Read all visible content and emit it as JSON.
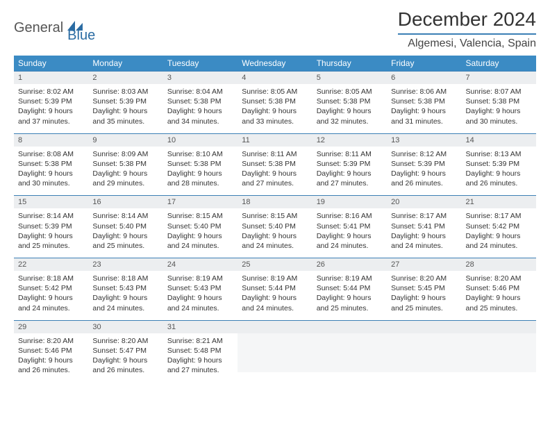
{
  "brand": {
    "text1": "General",
    "text2": "Blue"
  },
  "title": "December 2024",
  "location": "Algemesi, Valencia, Spain",
  "colors": {
    "header_bg": "#3b8bc4",
    "header_text": "#ffffff",
    "rule": "#3b7fb5",
    "daynum_bg": "#eceef0",
    "body_text": "#333333",
    "brand_blue": "#2b6ca3"
  },
  "dayNames": [
    "Sunday",
    "Monday",
    "Tuesday",
    "Wednesday",
    "Thursday",
    "Friday",
    "Saturday"
  ],
  "weeks": [
    [
      {
        "n": "1",
        "sr": "8:02 AM",
        "ss": "5:39 PM",
        "dl": "9 hours and 37 minutes."
      },
      {
        "n": "2",
        "sr": "8:03 AM",
        "ss": "5:39 PM",
        "dl": "9 hours and 35 minutes."
      },
      {
        "n": "3",
        "sr": "8:04 AM",
        "ss": "5:38 PM",
        "dl": "9 hours and 34 minutes."
      },
      {
        "n": "4",
        "sr": "8:05 AM",
        "ss": "5:38 PM",
        "dl": "9 hours and 33 minutes."
      },
      {
        "n": "5",
        "sr": "8:05 AM",
        "ss": "5:38 PM",
        "dl": "9 hours and 32 minutes."
      },
      {
        "n": "6",
        "sr": "8:06 AM",
        "ss": "5:38 PM",
        "dl": "9 hours and 31 minutes."
      },
      {
        "n": "7",
        "sr": "8:07 AM",
        "ss": "5:38 PM",
        "dl": "9 hours and 30 minutes."
      }
    ],
    [
      {
        "n": "8",
        "sr": "8:08 AM",
        "ss": "5:38 PM",
        "dl": "9 hours and 30 minutes."
      },
      {
        "n": "9",
        "sr": "8:09 AM",
        "ss": "5:38 PM",
        "dl": "9 hours and 29 minutes."
      },
      {
        "n": "10",
        "sr": "8:10 AM",
        "ss": "5:38 PM",
        "dl": "9 hours and 28 minutes."
      },
      {
        "n": "11",
        "sr": "8:11 AM",
        "ss": "5:38 PM",
        "dl": "9 hours and 27 minutes."
      },
      {
        "n": "12",
        "sr": "8:11 AM",
        "ss": "5:39 PM",
        "dl": "9 hours and 27 minutes."
      },
      {
        "n": "13",
        "sr": "8:12 AM",
        "ss": "5:39 PM",
        "dl": "9 hours and 26 minutes."
      },
      {
        "n": "14",
        "sr": "8:13 AM",
        "ss": "5:39 PM",
        "dl": "9 hours and 26 minutes."
      }
    ],
    [
      {
        "n": "15",
        "sr": "8:14 AM",
        "ss": "5:39 PM",
        "dl": "9 hours and 25 minutes."
      },
      {
        "n": "16",
        "sr": "8:14 AM",
        "ss": "5:40 PM",
        "dl": "9 hours and 25 minutes."
      },
      {
        "n": "17",
        "sr": "8:15 AM",
        "ss": "5:40 PM",
        "dl": "9 hours and 24 minutes."
      },
      {
        "n": "18",
        "sr": "8:15 AM",
        "ss": "5:40 PM",
        "dl": "9 hours and 24 minutes."
      },
      {
        "n": "19",
        "sr": "8:16 AM",
        "ss": "5:41 PM",
        "dl": "9 hours and 24 minutes."
      },
      {
        "n": "20",
        "sr": "8:17 AM",
        "ss": "5:41 PM",
        "dl": "9 hours and 24 minutes."
      },
      {
        "n": "21",
        "sr": "8:17 AM",
        "ss": "5:42 PM",
        "dl": "9 hours and 24 minutes."
      }
    ],
    [
      {
        "n": "22",
        "sr": "8:18 AM",
        "ss": "5:42 PM",
        "dl": "9 hours and 24 minutes."
      },
      {
        "n": "23",
        "sr": "8:18 AM",
        "ss": "5:43 PM",
        "dl": "9 hours and 24 minutes."
      },
      {
        "n": "24",
        "sr": "8:19 AM",
        "ss": "5:43 PM",
        "dl": "9 hours and 24 minutes."
      },
      {
        "n": "25",
        "sr": "8:19 AM",
        "ss": "5:44 PM",
        "dl": "9 hours and 24 minutes."
      },
      {
        "n": "26",
        "sr": "8:19 AM",
        "ss": "5:44 PM",
        "dl": "9 hours and 25 minutes."
      },
      {
        "n": "27",
        "sr": "8:20 AM",
        "ss": "5:45 PM",
        "dl": "9 hours and 25 minutes."
      },
      {
        "n": "28",
        "sr": "8:20 AM",
        "ss": "5:46 PM",
        "dl": "9 hours and 25 minutes."
      }
    ],
    [
      {
        "n": "29",
        "sr": "8:20 AM",
        "ss": "5:46 PM",
        "dl": "9 hours and 26 minutes."
      },
      {
        "n": "30",
        "sr": "8:20 AM",
        "ss": "5:47 PM",
        "dl": "9 hours and 26 minutes."
      },
      {
        "n": "31",
        "sr": "8:21 AM",
        "ss": "5:48 PM",
        "dl": "9 hours and 27 minutes."
      },
      null,
      null,
      null,
      null
    ]
  ],
  "labels": {
    "sunrise": "Sunrise:",
    "sunset": "Sunset:",
    "daylight": "Daylight:"
  }
}
